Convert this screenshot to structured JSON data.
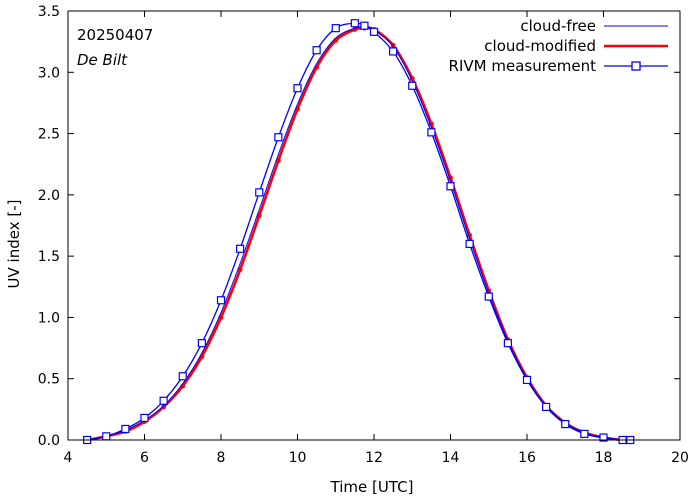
{
  "chart_data": {
    "type": "line",
    "title": "",
    "annotations": {
      "date": "20250407",
      "location": "De Bilt"
    },
    "xlabel": "Time  [UTC]",
    "ylabel": "UV index  [-]",
    "xlim": [
      4,
      20
    ],
    "ylim": [
      0,
      3.5
    ],
    "x_ticks": [
      "4",
      "6",
      "8",
      "10",
      "12",
      "14",
      "16",
      "18",
      "20"
    ],
    "y_ticks": [
      "0.0",
      "0.5",
      "1.0",
      "1.5",
      "2.0",
      "2.5",
      "3.0",
      "3.5"
    ],
    "legend_position": "top-right",
    "series": [
      {
        "name": "cloud-free",
        "color": "#0000ff",
        "style": "thin-line",
        "x": [
          4.5,
          5.0,
          5.5,
          6.0,
          6.5,
          7.0,
          7.5,
          8.0,
          8.5,
          9.0,
          9.5,
          10.0,
          10.5,
          11.0,
          11.5,
          11.75,
          12.0,
          12.5,
          13.0,
          13.5,
          14.0,
          14.5,
          15.0,
          15.5,
          16.0,
          16.5,
          17.0,
          17.5,
          18.0,
          18.5,
          18.7
        ],
        "values": [
          0.0,
          0.03,
          0.08,
          0.16,
          0.28,
          0.46,
          0.71,
          1.04,
          1.44,
          1.88,
          2.33,
          2.74,
          3.07,
          3.28,
          3.36,
          3.37,
          3.35,
          3.21,
          2.93,
          2.55,
          2.11,
          1.64,
          1.2,
          0.81,
          0.5,
          0.28,
          0.14,
          0.06,
          0.02,
          0.0,
          0.0
        ]
      },
      {
        "name": "cloud-modified",
        "color": "#ff0000",
        "style": "thick-line",
        "x": [
          4.5,
          5.0,
          5.5,
          6.0,
          6.5,
          7.0,
          7.5,
          8.0,
          8.5,
          9.0,
          9.5,
          10.0,
          10.5,
          11.0,
          11.5,
          11.75,
          12.0,
          12.5,
          13.0,
          13.5,
          14.0,
          14.5,
          15.0,
          15.5,
          16.0,
          16.5,
          17.0,
          17.5,
          18.0,
          18.5,
          18.7
        ],
        "values": [
          0.0,
          0.03,
          0.07,
          0.15,
          0.27,
          0.44,
          0.68,
          1.0,
          1.39,
          1.83,
          2.28,
          2.7,
          3.04,
          3.26,
          3.35,
          3.36,
          3.35,
          3.22,
          2.95,
          2.58,
          2.14,
          1.67,
          1.22,
          0.82,
          0.51,
          0.28,
          0.14,
          0.06,
          0.02,
          0.0,
          0.0
        ]
      },
      {
        "name": "RIVM measurement",
        "color": "#0000ff",
        "style": "line-square-markers",
        "x": [
          4.5,
          5.0,
          5.5,
          6.0,
          6.5,
          7.0,
          7.5,
          8.0,
          8.5,
          9.0,
          9.5,
          10.0,
          10.5,
          11.0,
          11.5,
          11.75,
          12.0,
          12.5,
          13.0,
          13.5,
          14.0,
          14.5,
          15.0,
          15.5,
          16.0,
          16.5,
          17.0,
          17.5,
          18.0,
          18.5,
          18.7
        ],
        "values": [
          0.0,
          0.03,
          0.09,
          0.18,
          0.32,
          0.52,
          0.79,
          1.14,
          1.56,
          2.02,
          2.47,
          2.87,
          3.18,
          3.36,
          3.4,
          3.38,
          3.33,
          3.17,
          2.89,
          2.51,
          2.07,
          1.6,
          1.17,
          0.79,
          0.49,
          0.27,
          0.13,
          0.05,
          0.02,
          0.0,
          0.0
        ]
      }
    ]
  }
}
